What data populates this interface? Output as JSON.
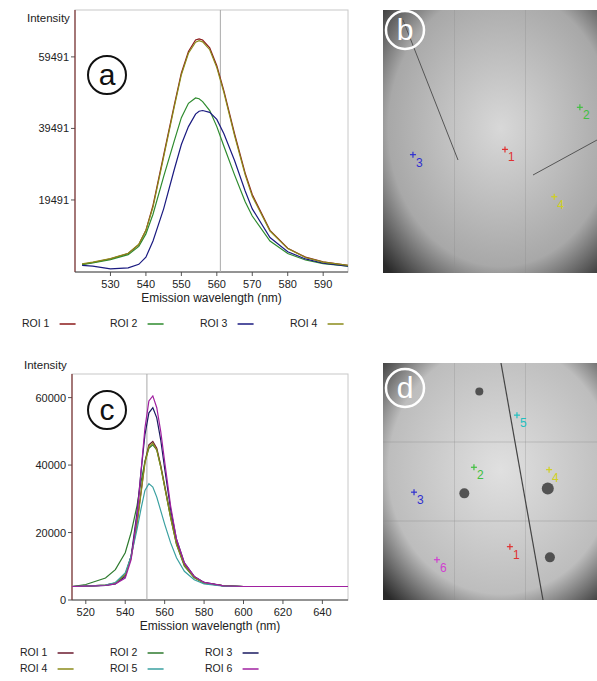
{
  "chart_data": [
    {
      "type": "line",
      "label": "a",
      "y_label": "Intensity",
      "x_label": "Emission wavelength (nm)",
      "xlim": [
        520,
        597
      ],
      "ylim": [
        -650,
        72600
      ],
      "xticks": [
        530,
        540,
        550,
        560,
        570,
        580,
        590
      ],
      "yticks": [
        19491,
        39491,
        59491
      ],
      "grid": false,
      "legend": "bottom",
      "vline": 561,
      "x": [
        522,
        525,
        530,
        535,
        538,
        540,
        542,
        545,
        548,
        550,
        552,
        554,
        555,
        556,
        558,
        560,
        562,
        565,
        568,
        570,
        575,
        580,
        585,
        590,
        597
      ],
      "series": [
        {
          "name": "ROI 1",
          "color": "#8b1a1a",
          "values": [
            1500,
            2000,
            3000,
            4500,
            7000,
            11000,
            18000,
            32000,
            46000,
            55000,
            61000,
            64200,
            64500,
            64200,
            62000,
            57000,
            50000,
            38000,
            27000,
            21000,
            11000,
            6000,
            3500,
            2200,
            1200
          ]
        },
        {
          "name": "ROI 2",
          "color": "#2e8b2e",
          "values": [
            1400,
            1900,
            2800,
            4200,
            6500,
            10000,
            15500,
            26000,
            36000,
            42500,
            46500,
            48000,
            47800,
            47000,
            44500,
            40000,
            34500,
            26500,
            19000,
            15000,
            8000,
            4500,
            2700,
            1700,
            1000
          ]
        },
        {
          "name": "ROI 3",
          "color": "#1a1a80",
          "values": [
            1200,
            1000,
            200,
            500,
            1500,
            3500,
            8000,
            17000,
            28000,
            35000,
            40000,
            43500,
            44300,
            44500,
            44000,
            42000,
            38000,
            30500,
            22000,
            17000,
            9000,
            5000,
            3000,
            1800,
            1000
          ]
        },
        {
          "name": "ROI 4",
          "color": "#8b8b1a",
          "values": [
            1600,
            2100,
            3100,
            4600,
            7100,
            11000,
            17500,
            31500,
            45500,
            54500,
            60500,
            63600,
            64000,
            63700,
            61500,
            56500,
            49500,
            37500,
            26500,
            20500,
            10800,
            5900,
            3400,
            2100,
            1200
          ]
        }
      ]
    },
    {
      "type": "line",
      "label": "c",
      "y_label": "Intensity",
      "x_label": "Emission wavelength (nm)",
      "xlim": [
        513,
        653
      ],
      "ylim": [
        0,
        67000
      ],
      "xticks": [
        520,
        540,
        560,
        580,
        600,
        620,
        640
      ],
      "yticks": [
        0,
        20000,
        40000,
        60000
      ],
      "grid": false,
      "legend": "bottom",
      "vline": 551,
      "x": [
        513,
        520,
        530,
        535,
        540,
        543,
        546,
        548,
        550,
        552,
        554,
        556,
        558,
        560,
        563,
        566,
        570,
        575,
        580,
        590,
        600,
        620,
        640,
        653
      ],
      "series": [
        {
          "name": "ROI 1",
          "color": "#6b1a2e",
          "values": [
            4000,
            4100,
            4400,
            5000,
            7500,
            13000,
            23000,
            32000,
            41000,
            46000,
            47000,
            45000,
            40000,
            34000,
            25000,
            17000,
            10500,
            6800,
            5100,
            4200,
            4000,
            4000,
            4000,
            4000
          ]
        },
        {
          "name": "ROI 2",
          "color": "#2e7a2e",
          "values": [
            4000,
            4600,
            6500,
            9000,
            14000,
            20000,
            28000,
            35000,
            41000,
            45000,
            46000,
            44500,
            39500,
            33500,
            24500,
            16500,
            10000,
            6600,
            5000,
            4200,
            4000,
            4000,
            4000,
            4000
          ]
        },
        {
          "name": "ROI 3",
          "color": "#1a1a60",
          "values": [
            4000,
            4100,
            4300,
            4800,
            7000,
            13000,
            26000,
            38000,
            49000,
            55500,
            57000,
            54000,
            47500,
            39000,
            27000,
            18000,
            11000,
            7000,
            5200,
            4200,
            4000,
            4000,
            4000,
            4000
          ]
        },
        {
          "name": "ROI 4",
          "color": "#8b8b1a",
          "values": [
            4000,
            4100,
            4400,
            5000,
            7500,
            12500,
            22500,
            31500,
            40500,
            45500,
            46500,
            44500,
            39500,
            33500,
            24500,
            16500,
            10300,
            6700,
            5000,
            4200,
            4000,
            4000,
            4000,
            4000
          ]
        },
        {
          "name": "ROI 5",
          "color": "#3aa0a0",
          "values": [
            4000,
            4100,
            4400,
            5200,
            8000,
            13000,
            21000,
            27000,
            32500,
            34500,
            33500,
            30500,
            26500,
            22500,
            17000,
            12500,
            8500,
            6000,
            4800,
            4100,
            4000,
            4000,
            4000,
            4000
          ]
        },
        {
          "name": "ROI 6",
          "color": "#a020a0",
          "values": [
            4000,
            4100,
            4300,
            4800,
            6500,
            12000,
            25000,
            38000,
            51000,
            59000,
            60500,
            57000,
            50000,
            41000,
            28000,
            18000,
            11000,
            7000,
            5200,
            4200,
            4000,
            4000,
            4000,
            4000
          ]
        }
      ]
    }
  ],
  "images": [
    {
      "label": "b",
      "rois": [
        {
          "text": "3",
          "color": "#3030d0",
          "x": 0.14,
          "y": 0.55
        },
        {
          "text": "1",
          "color": "#e03030",
          "x": 0.57,
          "y": 0.53
        },
        {
          "text": "2",
          "color": "#40c040",
          "x": 0.92,
          "y": 0.37
        },
        {
          "text": "4",
          "color": "#d0d020",
          "x": 0.8,
          "y": 0.71
        }
      ]
    },
    {
      "label": "d",
      "rois": [
        {
          "text": "5",
          "color": "#20c0c0",
          "x": 0.626,
          "y": 0.22
        },
        {
          "text": "2",
          "color": "#40c040",
          "x": 0.425,
          "y": 0.44
        },
        {
          "text": "4",
          "color": "#d0d020",
          "x": 0.776,
          "y": 0.45
        },
        {
          "text": "3",
          "color": "#3030d0",
          "x": 0.145,
          "y": 0.545
        },
        {
          "text": "6",
          "color": "#d040d0",
          "x": 0.252,
          "y": 0.83
        },
        {
          "text": "1",
          "color": "#e03030",
          "x": 0.593,
          "y": 0.775
        }
      ]
    }
  ]
}
